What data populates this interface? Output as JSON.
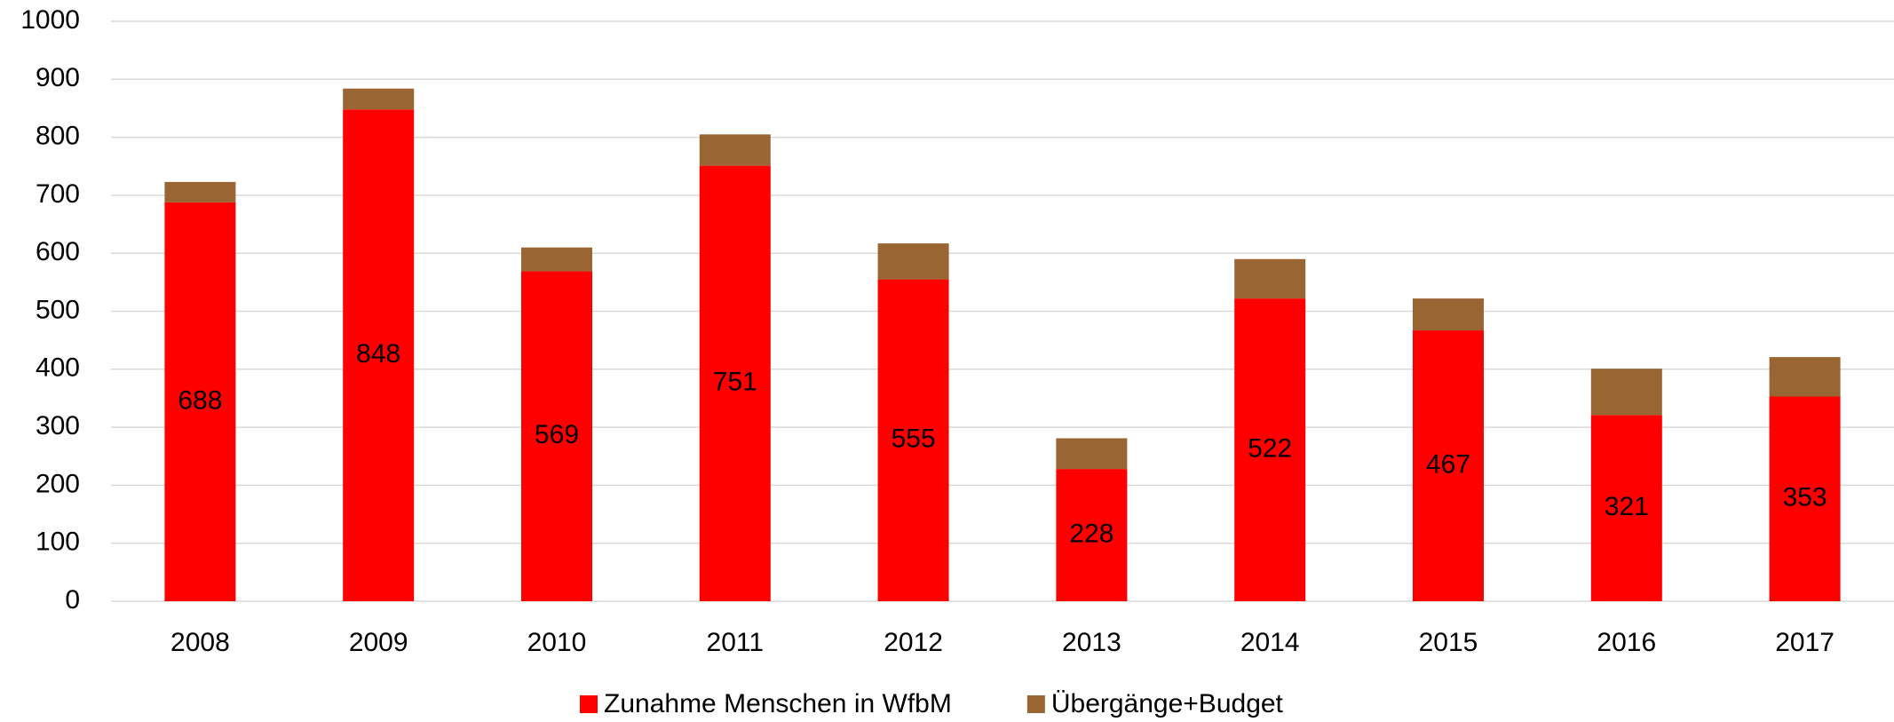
{
  "chart_data": {
    "type": "stacked_bar",
    "categories": [
      "2008",
      "2009",
      "2010",
      "2011",
      "2012",
      "2013",
      "2014",
      "2015",
      "2016",
      "2017"
    ],
    "series": [
      {
        "name": "Zunahme Menschen in WfbM",
        "color": "#ff0000",
        "values": [
          688,
          848,
          569,
          751,
          555,
          228,
          522,
          467,
          321,
          353
        ]
      },
      {
        "name": "Übergänge+Budget",
        "color": "#996633",
        "values": [
          35,
          36,
          41,
          54,
          62,
          53,
          68,
          55,
          80,
          68
        ]
      }
    ],
    "ylim": [
      0,
      1000
    ],
    "yticks": [
      0,
      100,
      200,
      300,
      400,
      500,
      600,
      700,
      800,
      900,
      1000
    ],
    "grid": true,
    "legend": "bottom"
  }
}
